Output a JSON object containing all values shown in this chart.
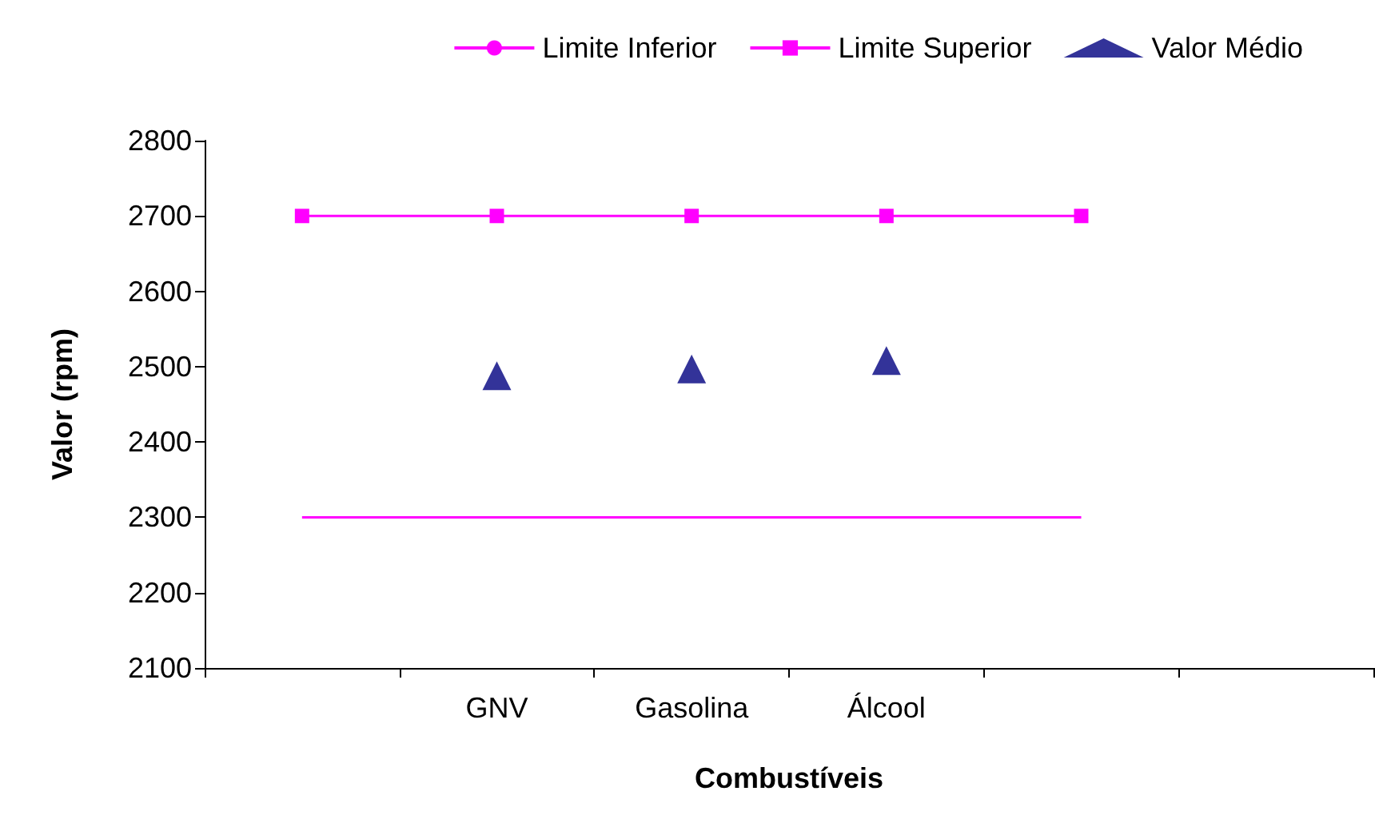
{
  "chart_data": {
    "type": "line",
    "xlabel": "Combustíveis",
    "ylabel": "Valor (rpm)",
    "categories": [
      null,
      "GNV",
      "Gasolina",
      "Álcool",
      null,
      null
    ],
    "series": [
      {
        "name": "Limite Inferior",
        "color": "#ff00ff",
        "marker": "none",
        "values": [
          2300,
          2300,
          2300,
          2300,
          2300,
          null
        ]
      },
      {
        "name": "Limite Superior",
        "color": "#ff00ff",
        "marker": "square",
        "values": [
          2700,
          2700,
          2700,
          2700,
          2700,
          null
        ]
      },
      {
        "name": "Valor Médio",
        "type": "scatter",
        "color": "#000080",
        "marker": "triangle",
        "values": [
          null,
          2488,
          2497,
          2508,
          null,
          null
        ]
      }
    ],
    "ylim": [
      2100,
      2800
    ],
    "yticks": [
      2100,
      2200,
      2300,
      2400,
      2500,
      2600,
      2700,
      2800
    ],
    "grid": false,
    "legend": "top right"
  }
}
